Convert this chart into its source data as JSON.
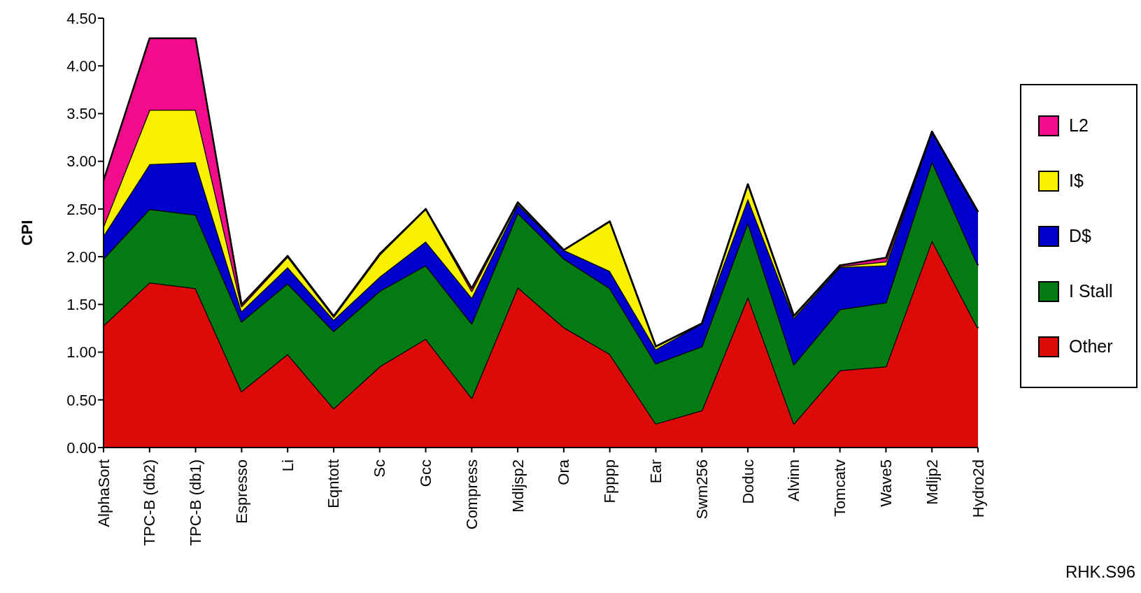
{
  "chart_data": {
    "type": "area",
    "stacked": true,
    "ylabel": "CPI",
    "categories": [
      "AlphaSort",
      "TPC-B (db2)",
      "TPC-B (db1)",
      "Espresso",
      "Li",
      "Eqntott",
      "Sc",
      "Gcc",
      "Compress",
      "Mdljsp2",
      "Ora",
      "Fpppp",
      "Ear",
      "Swm256",
      "Doduc",
      "Alvinn",
      "Tomcatv",
      "Wave5",
      "Mdljp2",
      "Hydro2d"
    ],
    "series": [
      {
        "name": "Other",
        "color": "#dc0a08",
        "values": [
          1.28,
          1.73,
          1.67,
          0.59,
          0.98,
          0.41,
          0.85,
          1.14,
          0.52,
          1.68,
          1.26,
          0.98,
          0.25,
          0.39,
          1.58,
          0.25,
          0.81,
          0.85,
          2.17,
          1.25
        ]
      },
      {
        "name": "I Stall",
        "color": "#037b12",
        "values": [
          0.7,
          0.77,
          0.77,
          0.73,
          0.74,
          0.81,
          0.79,
          0.77,
          0.78,
          0.78,
          0.72,
          0.69,
          0.63,
          0.67,
          0.78,
          0.62,
          0.64,
          0.67,
          0.83,
          0.66
        ]
      },
      {
        "name": "D$",
        "color": "#0000cc",
        "values": [
          0.24,
          0.47,
          0.55,
          0.11,
          0.17,
          0.12,
          0.15,
          0.25,
          0.27,
          0.09,
          0.09,
          0.18,
          0.15,
          0.24,
          0.25,
          0.49,
          0.44,
          0.39,
          0.31,
          0.56
        ]
      },
      {
        "name": "I$",
        "color": "#f8f200",
        "values": [
          0.1,
          0.57,
          0.55,
          0.05,
          0.11,
          0.03,
          0.23,
          0.34,
          0.07,
          0.02,
          0,
          0.52,
          0.03,
          0,
          0.15,
          0.02,
          0.01,
          0.04,
          0,
          0
        ]
      },
      {
        "name": "L2",
        "color": "#f00c8a",
        "values": [
          0.48,
          0.75,
          0.75,
          0.02,
          0.01,
          0.01,
          0.01,
          0,
          0.03,
          0,
          0,
          0,
          0,
          0,
          0,
          0,
          0.01,
          0.04,
          0,
          0
        ]
      }
    ],
    "ylim": [
      0,
      4.5
    ],
    "yticks": [
      {
        "value": 0,
        "label": "0.00"
      },
      {
        "value": 0.5,
        "label": "0.50"
      },
      {
        "value": 1,
        "label": "1.00"
      },
      {
        "value": 1.5,
        "label": "1.50"
      },
      {
        "value": 2,
        "label": "2.00"
      },
      {
        "value": 2.5,
        "label": "2.50"
      },
      {
        "value": 3,
        "label": "3.00"
      },
      {
        "value": 3.5,
        "label": "3.50"
      },
      {
        "value": 4,
        "label": "4.00"
      },
      {
        "value": 4.5,
        "label": "4.50"
      }
    ],
    "grid": false,
    "legend": "right",
    "annotations": [
      "RHK.S96"
    ]
  }
}
